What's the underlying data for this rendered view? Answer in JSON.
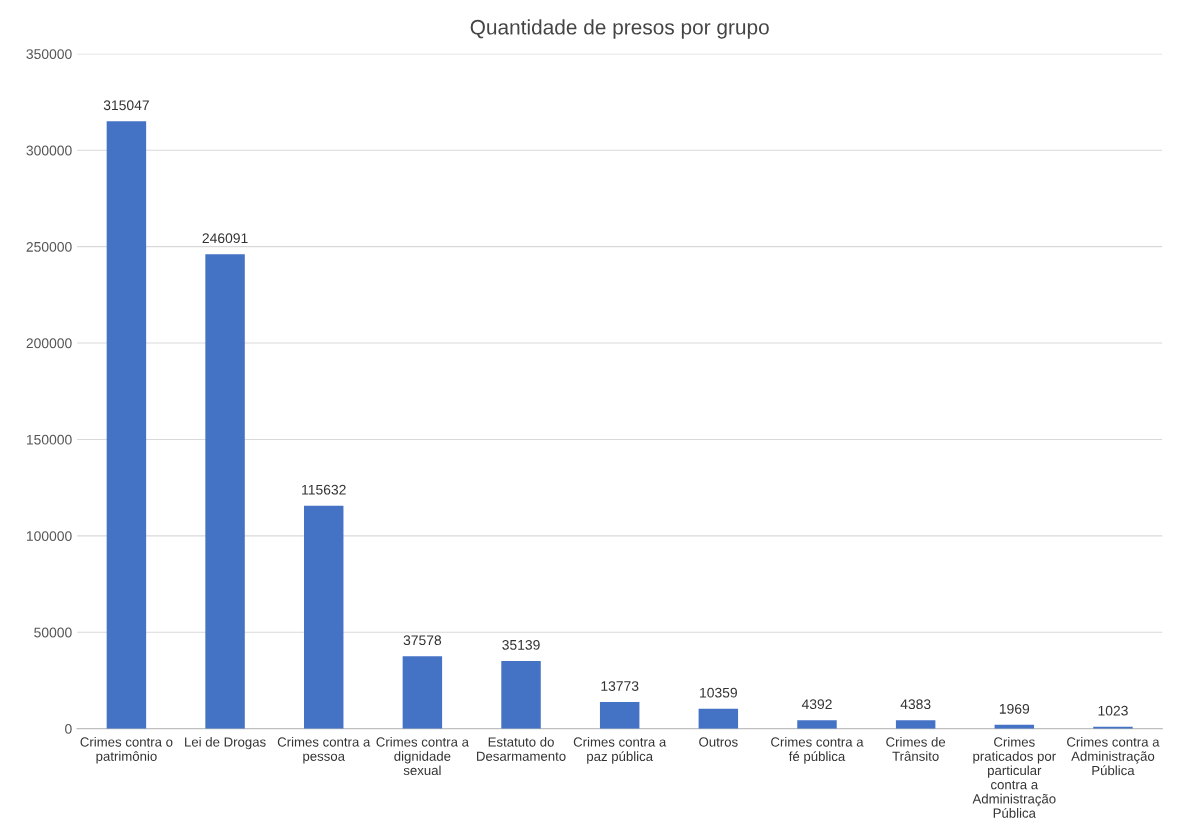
{
  "chart_data": {
    "type": "bar",
    "title": "Quantidade de presos por grupo",
    "categories": [
      "Crimes contra o patrimônio",
      "Lei de Drogas",
      "Crimes contra a pessoa",
      "Crimes contra a dignidade sexual",
      "Estatuto do Desarmamento",
      "Crimes contra a paz pública",
      "Outros",
      "Crimes contra a fé pública",
      "Crimes de Trânsito",
      "Crimes praticados por particular contra a Administração Pública",
      "Crimes contra a Administração Pública"
    ],
    "values": [
      315047,
      246091,
      115632,
      37578,
      35139,
      13773,
      10359,
      4392,
      4383,
      1969,
      1023
    ],
    "color": "#4472c4",
    "ylim": [
      0,
      350000
    ],
    "yticks": [
      0,
      50000,
      100000,
      150000,
      200000,
      250000,
      300000,
      350000
    ],
    "grid": "y",
    "data_labels": true
  }
}
